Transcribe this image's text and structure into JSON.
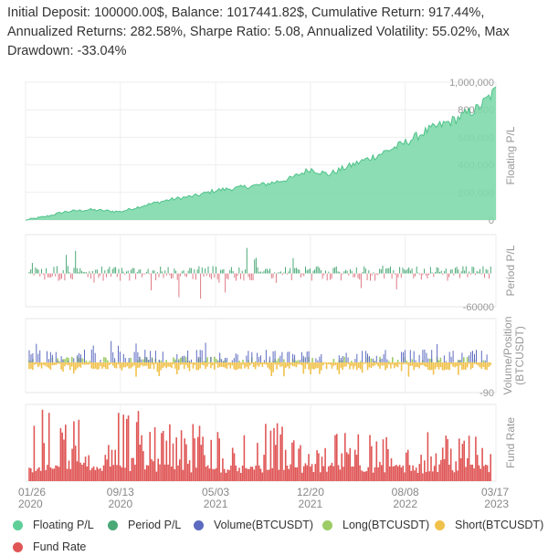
{
  "summary_text": "Initial Deposit: 100000.00$, Balance: 1017441.82$, Cumulative Return: 917.44%, Annualized Returns: 282.58%, Sharpe Ratio: 5.08, Annualized Volatility: 55.02%, Max Drawdown: -33.04%",
  "colors": {
    "floating": "#5fce99",
    "floating_fill": "#7fd9ab",
    "period": "#4aa876",
    "period_neg": "#de7b87",
    "volume": "#5c6bc0",
    "long": "#9ccc65",
    "short": "#f0c14b",
    "fund": "#e05656"
  },
  "legend": [
    {
      "name": "Floating P/L",
      "color": "#5fce99"
    },
    {
      "name": "Period P/L",
      "color": "#4aa876"
    },
    {
      "name": "Volume(BTCUSDT)",
      "color": "#5c6bc0"
    },
    {
      "name": "Long(BTCUSDT)",
      "color": "#9ccc65"
    },
    {
      "name": "Short(BTCUSDT)",
      "color": "#f0c14b"
    },
    {
      "name": "Fund Rate",
      "color": "#e05656"
    }
  ],
  "chart_data": [
    {
      "type": "area",
      "ylabel": "Floating P/L",
      "ylim": [
        0,
        1000000
      ],
      "yticks": [
        "0",
        "200,000",
        "400,000",
        "600,000",
        "800,000",
        "1,000,000"
      ],
      "ytick_values": [
        0,
        200000,
        400000,
        600000,
        800000,
        1000000
      ],
      "x": [
        "2020-01-26",
        "2020-03-15",
        "2020-05-01",
        "2020-07-01",
        "2020-09-13",
        "2020-11-15",
        "2021-01-15",
        "2021-03-15",
        "2021-05-03",
        "2021-07-01",
        "2021-09-01",
        "2021-11-01",
        "2021-12-20",
        "2022-02-01",
        "2022-04-01",
        "2022-06-01",
        "2022-08-08",
        "2022-10-01",
        "2022-12-01",
        "2023-02-01",
        "2023-03-17"
      ],
      "values": [
        0,
        25000,
        60000,
        75000,
        60000,
        110000,
        150000,
        175000,
        215000,
        235000,
        260000,
        300000,
        370000,
        330000,
        400000,
        470000,
        560000,
        650000,
        720000,
        810000,
        940000
      ],
      "grid": true
    },
    {
      "type": "bar",
      "ylabel": "Period P/L",
      "ytick_labels": [
        "-60000"
      ],
      "ytick_values": [
        -60000
      ],
      "ylim": [
        -60000,
        70000
      ],
      "grid": true
    },
    {
      "type": "bar",
      "ylabel": "Volume/Position (BTCUSDT)",
      "ylabel_lines": [
        "Volume/Position",
        "(BTCUSDT)"
      ],
      "ytick_labels": [
        "-90"
      ],
      "ytick_values": [
        -90
      ],
      "ylim": [
        -90,
        130
      ],
      "grid": true
    },
    {
      "type": "bar",
      "ylabel": "Fund Rate",
      "grid": true
    }
  ],
  "x_ticks": [
    {
      "date": "2020-01-26",
      "line1": "01/26",
      "line2": "2020"
    },
    {
      "date": "2020-09-13",
      "line1": "09/13",
      "line2": "2020"
    },
    {
      "date": "2021-05-03",
      "line1": "05/03",
      "line2": "2021"
    },
    {
      "date": "2021-12-20",
      "line1": "12/20",
      "line2": "2021"
    },
    {
      "date": "2022-08-08",
      "line1": "08/08",
      "line2": "2022"
    },
    {
      "date": "2023-03-17",
      "line1": "03/17",
      "line2": "2023"
    }
  ],
  "x_range": [
    "2020-01-26",
    "2023-03-17"
  ]
}
